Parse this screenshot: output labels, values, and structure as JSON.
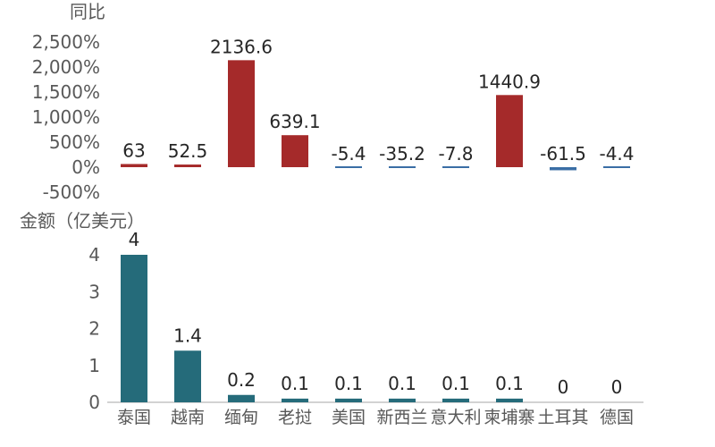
{
  "chart_data": [
    {
      "type": "bar",
      "ylabel": "同比",
      "categories": [
        "泰国",
        "越南",
        "缅甸",
        "老挝",
        "美国",
        "新西兰",
        "意大利",
        "柬埔寨",
        "土耳其",
        "德国"
      ],
      "values": [
        63,
        52.5,
        2136.6,
        639.1,
        -5.4,
        -35.2,
        -7.8,
        1440.9,
        -61.5,
        -4.4
      ],
      "value_labels": [
        "63",
        "52.5",
        "2136.6",
        "639.1",
        "-5.4",
        "-35.2",
        "-7.8",
        "1440.9",
        "-61.5",
        "-4.4"
      ],
      "ylim": [
        -500,
        2500
      ],
      "yticks": [
        "2,500%",
        "2,000%",
        "1,500%",
        "1,000%",
        "500%",
        "0%",
        "-500%"
      ],
      "ytick_values": [
        2500,
        2000,
        1500,
        1000,
        500,
        0,
        -500
      ],
      "positive_color": "#a52a2a",
      "negative_color": "#3a6ea5"
    },
    {
      "type": "bar",
      "ylabel": "金额（亿美元）",
      "categories": [
        "泰国",
        "越南",
        "缅甸",
        "老挝",
        "美国",
        "新西兰",
        "意大利",
        "柬埔寨",
        "土耳其",
        "德国"
      ],
      "values": [
        4,
        1.4,
        0.2,
        0.1,
        0.1,
        0.1,
        0.1,
        0.1,
        0,
        0
      ],
      "value_labels": [
        "4",
        "1.4",
        "0.2",
        "0.1",
        "0.1",
        "0.1",
        "0.1",
        "0.1",
        "0",
        "0"
      ],
      "ylim": [
        0,
        4
      ],
      "yticks": [
        "4",
        "3",
        "2",
        "1",
        "0"
      ],
      "ytick_values": [
        4,
        3,
        2,
        1,
        0
      ],
      "bar_color": "#256b7a",
      "axis_color": "#a6a6a6"
    }
  ]
}
